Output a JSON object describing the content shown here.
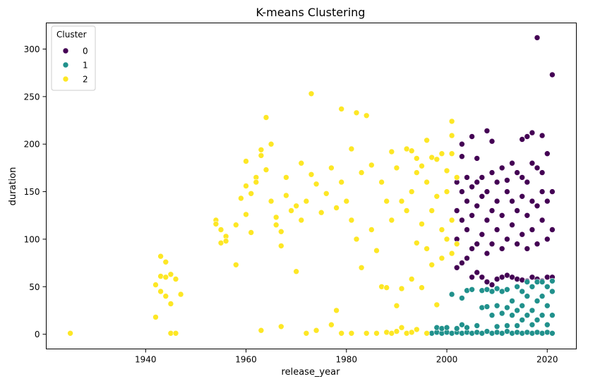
{
  "chart_data": {
    "type": "scatter",
    "title": "K-means Clustering",
    "xlabel": "release_year",
    "ylabel": "duration",
    "xlim": [
      1920.2,
      2025.8
    ],
    "ylim": [
      -15.5,
      327.5
    ],
    "x_ticks": [
      1940,
      1960,
      1980,
      2000,
      2020
    ],
    "y_ticks": [
      0,
      50,
      100,
      150,
      200,
      250,
      300
    ],
    "grid": false,
    "legend": {
      "title": "Cluster",
      "placement": "top-left",
      "entries": [
        {
          "label": "0",
          "color": "#440154"
        },
        {
          "label": "1",
          "color": "#21918c"
        },
        {
          "label": "2",
          "color": "#fde725"
        }
      ]
    },
    "series": [
      {
        "name": "0",
        "color": "#440154",
        "points": [
          [
            2002,
            70
          ],
          [
            2002,
            100
          ],
          [
            2002,
            130
          ],
          [
            2002,
            160
          ],
          [
            2003,
            75
          ],
          [
            2003,
            120
          ],
          [
            2003,
            150
          ],
          [
            2003,
            200
          ],
          [
            2003,
            187
          ],
          [
            2004,
            80
          ],
          [
            2004,
            110
          ],
          [
            2004,
            140
          ],
          [
            2004,
            165
          ],
          [
            2005,
            60
          ],
          [
            2005,
            90
          ],
          [
            2005,
            125
          ],
          [
            2005,
            155
          ],
          [
            2005,
            208
          ],
          [
            2006,
            65
          ],
          [
            2006,
            95
          ],
          [
            2006,
            135
          ],
          [
            2006,
            160
          ],
          [
            2006,
            185
          ],
          [
            2007,
            60
          ],
          [
            2007,
            105
          ],
          [
            2007,
            145
          ],
          [
            2007,
            165
          ],
          [
            2008,
            55
          ],
          [
            2008,
            85
          ],
          [
            2008,
            120
          ],
          [
            2008,
            150
          ],
          [
            2008,
            214
          ],
          [
            2009,
            52
          ],
          [
            2009,
            95
          ],
          [
            2009,
            130
          ],
          [
            2009,
            170
          ],
          [
            2009,
            203
          ],
          [
            2010,
            58
          ],
          [
            2010,
            110
          ],
          [
            2010,
            140
          ],
          [
            2010,
            160
          ],
          [
            2011,
            60
          ],
          [
            2011,
            90
          ],
          [
            2011,
            125
          ],
          [
            2011,
            175
          ],
          [
            2012,
            62
          ],
          [
            2012,
            100
          ],
          [
            2012,
            150
          ],
          [
            2012,
            162
          ],
          [
            2013,
            60
          ],
          [
            2013,
            115
          ],
          [
            2013,
            140
          ],
          [
            2013,
            180
          ],
          [
            2014,
            58
          ],
          [
            2014,
            95
          ],
          [
            2014,
            130
          ],
          [
            2014,
            170
          ],
          [
            2015,
            57
          ],
          [
            2015,
            105
          ],
          [
            2015,
            145
          ],
          [
            2015,
            165
          ],
          [
            2015,
            205
          ],
          [
            2016,
            56
          ],
          [
            2016,
            90
          ],
          [
            2016,
            125
          ],
          [
            2016,
            160
          ],
          [
            2016,
            208
          ],
          [
            2017,
            60
          ],
          [
            2017,
            110
          ],
          [
            2017,
            140
          ],
          [
            2017,
            180
          ],
          [
            2017,
            212
          ],
          [
            2018,
            58
          ],
          [
            2018,
            95
          ],
          [
            2018,
            135
          ],
          [
            2018,
            175
          ],
          [
            2018,
            312
          ],
          [
            2019,
            56
          ],
          [
            2019,
            120
          ],
          [
            2019,
            150
          ],
          [
            2019,
            170
          ],
          [
            2019,
            209
          ],
          [
            2020,
            60
          ],
          [
            2020,
            100
          ],
          [
            2020,
            140
          ],
          [
            2020,
            190
          ],
          [
            2021,
            60
          ],
          [
            2021,
            110
          ],
          [
            2021,
            150
          ],
          [
            2021,
            273
          ]
        ]
      },
      {
        "name": "1",
        "color": "#21918c",
        "points": [
          [
            1997,
            1
          ],
          [
            1998,
            2
          ],
          [
            1998,
            7
          ],
          [
            1999,
            1
          ],
          [
            1999,
            6
          ],
          [
            2000,
            2
          ],
          [
            2000,
            7
          ],
          [
            2001,
            1
          ],
          [
            2001,
            42
          ],
          [
            2002,
            2
          ],
          [
            2002,
            6
          ],
          [
            2003,
            1
          ],
          [
            2003,
            38
          ],
          [
            2003,
            10
          ],
          [
            2004,
            2
          ],
          [
            2004,
            7
          ],
          [
            2004,
            46
          ],
          [
            2005,
            1
          ],
          [
            2005,
            47
          ],
          [
            2006,
            2
          ],
          [
            2006,
            9
          ],
          [
            2007,
            1
          ],
          [
            2007,
            28
          ],
          [
            2007,
            46
          ],
          [
            2008,
            3
          ],
          [
            2008,
            29
          ],
          [
            2008,
            47
          ],
          [
            2009,
            1
          ],
          [
            2009,
            20
          ],
          [
            2009,
            45
          ],
          [
            2010,
            2
          ],
          [
            2010,
            8
          ],
          [
            2010,
            30
          ],
          [
            2010,
            48
          ],
          [
            2011,
            1
          ],
          [
            2011,
            22
          ],
          [
            2011,
            45
          ],
          [
            2012,
            3
          ],
          [
            2012,
            9
          ],
          [
            2012,
            28
          ],
          [
            2012,
            47
          ],
          [
            2013,
            1
          ],
          [
            2013,
            20
          ],
          [
            2013,
            35
          ],
          [
            2014,
            2
          ],
          [
            2014,
            9
          ],
          [
            2014,
            25
          ],
          [
            2014,
            50
          ],
          [
            2015,
            1
          ],
          [
            2015,
            15
          ],
          [
            2015,
            30
          ],
          [
            2015,
            45
          ],
          [
            2016,
            2
          ],
          [
            2016,
            20
          ],
          [
            2016,
            40
          ],
          [
            2016,
            55
          ],
          [
            2017,
            1
          ],
          [
            2017,
            10
          ],
          [
            2017,
            25
          ],
          [
            2017,
            50
          ],
          [
            2018,
            2
          ],
          [
            2018,
            15
          ],
          [
            2018,
            35
          ],
          [
            2018,
            55
          ],
          [
            2019,
            1
          ],
          [
            2019,
            20
          ],
          [
            2019,
            40
          ],
          [
            2019,
            55
          ],
          [
            2020,
            2
          ],
          [
            2020,
            10
          ],
          [
            2020,
            30
          ],
          [
            2020,
            50
          ],
          [
            2021,
            1
          ],
          [
            2021,
            20
          ],
          [
            2021,
            45
          ],
          [
            2021,
            56
          ]
        ]
      },
      {
        "name": "2",
        "color": "#fde725",
        "points": [
          [
            1925,
            1
          ],
          [
            1942,
            18
          ],
          [
            1942,
            52
          ],
          [
            1943,
            45
          ],
          [
            1943,
            61
          ],
          [
            1943,
            82
          ],
          [
            1944,
            76
          ],
          [
            1944,
            40
          ],
          [
            1944,
            60
          ],
          [
            1945,
            32
          ],
          [
            1945,
            63
          ],
          [
            1945,
            1
          ],
          [
            1946,
            58
          ],
          [
            1946,
            1
          ],
          [
            1947,
            42
          ],
          [
            1954,
            120
          ],
          [
            1954,
            116
          ],
          [
            1955,
            110
          ],
          [
            1955,
            96
          ],
          [
            1956,
            103
          ],
          [
            1956,
            98
          ],
          [
            1958,
            115
          ],
          [
            1958,
            73
          ],
          [
            1959,
            143
          ],
          [
            1960,
            182
          ],
          [
            1960,
            156
          ],
          [
            1960,
            126
          ],
          [
            1961,
            148
          ],
          [
            1961,
            107
          ],
          [
            1962,
            165
          ],
          [
            1962,
            160
          ],
          [
            1963,
            188
          ],
          [
            1963,
            194
          ],
          [
            1963,
            4
          ],
          [
            1964,
            228
          ],
          [
            1964,
            173
          ],
          [
            1965,
            200
          ],
          [
            1965,
            140
          ],
          [
            1966,
            123
          ],
          [
            1966,
            115
          ],
          [
            1967,
            108
          ],
          [
            1967,
            93
          ],
          [
            1967,
            8
          ],
          [
            1968,
            165
          ],
          [
            1968,
            146
          ],
          [
            1969,
            130
          ],
          [
            1970,
            135
          ],
          [
            1970,
            66
          ],
          [
            1971,
            180
          ],
          [
            1971,
            120
          ],
          [
            1972,
            1
          ],
          [
            1972,
            140
          ],
          [
            1973,
            253
          ],
          [
            1973,
            168
          ],
          [
            1974,
            158
          ],
          [
            1974,
            4
          ],
          [
            1975,
            128
          ],
          [
            1976,
            148
          ],
          [
            1977,
            175
          ],
          [
            1977,
            10
          ],
          [
            1978,
            25
          ],
          [
            1978,
            133
          ],
          [
            1979,
            237
          ],
          [
            1979,
            160
          ],
          [
            1979,
            1
          ],
          [
            1980,
            140
          ],
          [
            1981,
            195
          ],
          [
            1981,
            120
          ],
          [
            1981,
            1
          ],
          [
            1982,
            233
          ],
          [
            1982,
            100
          ],
          [
            1983,
            170
          ],
          [
            1983,
            70
          ],
          [
            1984,
            230
          ],
          [
            1984,
            1
          ],
          [
            1985,
            178
          ],
          [
            1985,
            110
          ],
          [
            1986,
            88
          ],
          [
            1986,
            1
          ],
          [
            1987,
            160
          ],
          [
            1987,
            50
          ],
          [
            1988,
            140
          ],
          [
            1988,
            49
          ],
          [
            1988,
            2
          ],
          [
            1989,
            192
          ],
          [
            1989,
            120
          ],
          [
            1989,
            1
          ],
          [
            1990,
            175
          ],
          [
            1990,
            30
          ],
          [
            1990,
            3
          ],
          [
            1991,
            140
          ],
          [
            1991,
            48
          ],
          [
            1991,
            7
          ],
          [
            1992,
            195
          ],
          [
            1992,
            130
          ],
          [
            1992,
            1
          ],
          [
            1993,
            193
          ],
          [
            1993,
            150
          ],
          [
            1993,
            58
          ],
          [
            1993,
            2
          ],
          [
            1994,
            185
          ],
          [
            1994,
            170
          ],
          [
            1994,
            96
          ],
          [
            1994,
            5
          ],
          [
            1995,
            177
          ],
          [
            1995,
            116
          ],
          [
            1995,
            49
          ],
          [
            1996,
            204
          ],
          [
            1996,
            160
          ],
          [
            1996,
            90
          ],
          [
            1996,
            1
          ],
          [
            1997,
            186
          ],
          [
            1997,
            130
          ],
          [
            1997,
            73
          ],
          [
            1998,
            184
          ],
          [
            1998,
            145
          ],
          [
            1998,
            31
          ],
          [
            1999,
            190
          ],
          [
            1999,
            110
          ],
          [
            1999,
            80
          ],
          [
            2000,
            172
          ],
          [
            2000,
            150
          ],
          [
            2000,
            100
          ],
          [
            2001,
            224
          ],
          [
            2001,
            209
          ],
          [
            2001,
            190
          ],
          [
            2001,
            120
          ],
          [
            2001,
            85
          ],
          [
            2002,
            165
          ],
          [
            2002,
            95
          ]
        ]
      }
    ]
  }
}
